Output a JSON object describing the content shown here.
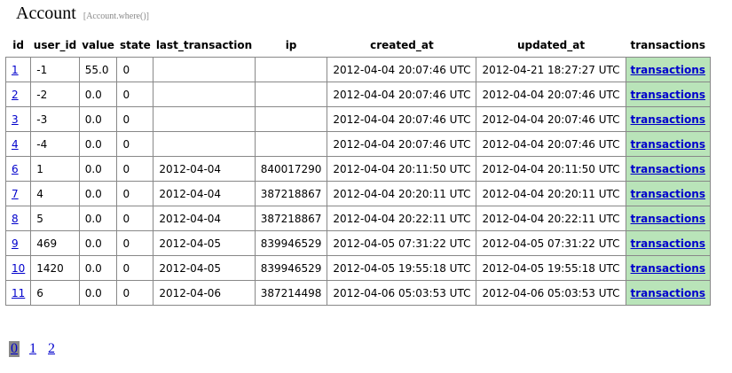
{
  "header": {
    "title": "Account",
    "query": "[Account.where()]"
  },
  "table": {
    "columns": [
      "id",
      "user_id",
      "value",
      "state",
      "last_transaction",
      "ip",
      "created_at",
      "updated_at",
      "transactions"
    ],
    "rows": [
      {
        "id": "1",
        "user_id": "-1",
        "value": "55.0",
        "state": "0",
        "last_transaction": "",
        "ip": "",
        "created_at": "2012-04-04 20:07:46 UTC",
        "updated_at": "2012-04-21 18:27:27 UTC",
        "transactions": "transactions"
      },
      {
        "id": "2",
        "user_id": "-2",
        "value": "0.0",
        "state": "0",
        "last_transaction": "",
        "ip": "",
        "created_at": "2012-04-04 20:07:46 UTC",
        "updated_at": "2012-04-04 20:07:46 UTC",
        "transactions": "transactions"
      },
      {
        "id": "3",
        "user_id": "-3",
        "value": "0.0",
        "state": "0",
        "last_transaction": "",
        "ip": "",
        "created_at": "2012-04-04 20:07:46 UTC",
        "updated_at": "2012-04-04 20:07:46 UTC",
        "transactions": "transactions"
      },
      {
        "id": "4",
        "user_id": "-4",
        "value": "0.0",
        "state": "0",
        "last_transaction": "",
        "ip": "",
        "created_at": "2012-04-04 20:07:46 UTC",
        "updated_at": "2012-04-04 20:07:46 UTC",
        "transactions": "transactions"
      },
      {
        "id": "6",
        "user_id": "1",
        "value": "0.0",
        "state": "0",
        "last_transaction": "2012-04-04",
        "ip": "840017290",
        "created_at": "2012-04-04 20:11:50 UTC",
        "updated_at": "2012-04-04 20:11:50 UTC",
        "transactions": "transactions"
      },
      {
        "id": "7",
        "user_id": "4",
        "value": "0.0",
        "state": "0",
        "last_transaction": "2012-04-04",
        "ip": "387218867",
        "created_at": "2012-04-04 20:20:11 UTC",
        "updated_at": "2012-04-04 20:20:11 UTC",
        "transactions": "transactions"
      },
      {
        "id": "8",
        "user_id": "5",
        "value": "0.0",
        "state": "0",
        "last_transaction": "2012-04-04",
        "ip": "387218867",
        "created_at": "2012-04-04 20:22:11 UTC",
        "updated_at": "2012-04-04 20:22:11 UTC",
        "transactions": "transactions"
      },
      {
        "id": "9",
        "user_id": "469",
        "value": "0.0",
        "state": "0",
        "last_transaction": "2012-04-05",
        "ip": "839946529",
        "created_at": "2012-04-05 07:31:22 UTC",
        "updated_at": "2012-04-05 07:31:22 UTC",
        "transactions": "transactions"
      },
      {
        "id": "10",
        "user_id": "1420",
        "value": "0.0",
        "state": "0",
        "last_transaction": "2012-04-05",
        "ip": "839946529",
        "created_at": "2012-04-05 19:55:18 UTC",
        "updated_at": "2012-04-05 19:55:18 UTC",
        "transactions": "transactions"
      },
      {
        "id": "11",
        "user_id": "6",
        "value": "0.0",
        "state": "0",
        "last_transaction": "2012-04-06",
        "ip": "387214498",
        "created_at": "2012-04-06 05:03:53 UTC",
        "updated_at": "2012-04-06 05:03:53 UTC",
        "transactions": "transactions"
      }
    ]
  },
  "pagination": {
    "current": "0",
    "pages": [
      "1",
      "2"
    ]
  },
  "colors": {
    "link": "#0000cc",
    "transactions_cell_bg": "#b9e4b9",
    "current_page_bg": "#888888",
    "border": "#888888"
  }
}
